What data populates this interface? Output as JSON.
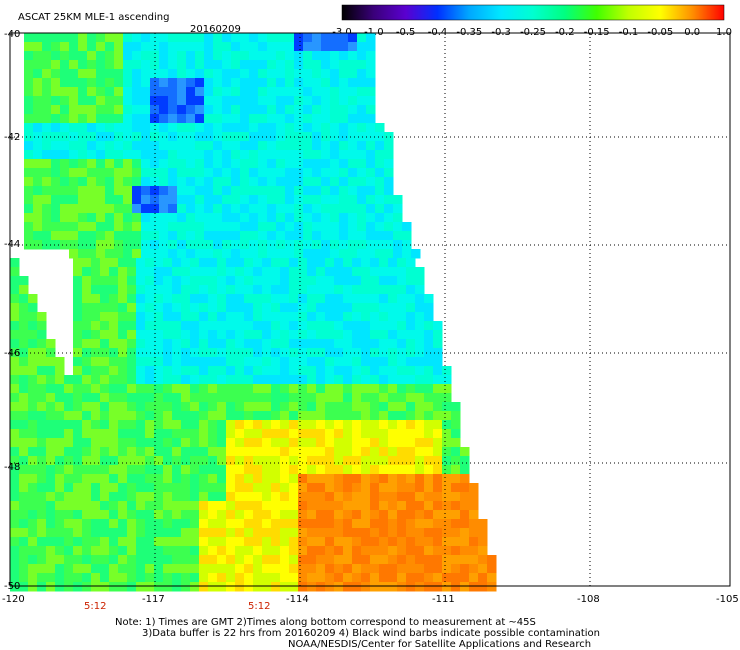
{
  "header": {
    "title": "ASCAT 25KM MLE-1 ascending",
    "date": "20160209"
  },
  "colorbar": {
    "labels": [
      "-3.0",
      "-1.0",
      "-0.5",
      "-0.4",
      "-0.35",
      "-0.3",
      "-0.25",
      "-0.2",
      "-0.15",
      "-0.1",
      "-0.05",
      "0.0",
      "1.0"
    ],
    "colors": [
      "#000000",
      "#3a007a",
      "#5a00d0",
      "#0030ff",
      "#00a8ff",
      "#00e8ff",
      "#00ffd0",
      "#00ff80",
      "#40ff00",
      "#c0ff00",
      "#ffff00",
      "#ff9000",
      "#ff0000"
    ]
  },
  "map": {
    "lat_labels": [
      "-40",
      "-42",
      "-44",
      "-46",
      "-48",
      "-50"
    ],
    "lon_labels": [
      "-120",
      "-117",
      "-114",
      "-111",
      "-108",
      "-105"
    ],
    "time_labels": [
      "5:12",
      "5:12"
    ],
    "grid": true,
    "lat_range": [
      -50,
      -40
    ],
    "lon_range": [
      -120,
      -105
    ]
  },
  "notes": {
    "line1": "Note: 1) Times are GMT 2)Times along bottom correspond to measurement at ~45S",
    "line2": "3)Data buffer is 22 hrs from 20160209 4) Black wind barbs indicate possible contamination",
    "line3": "NOAA/NESDIS/Center for Satellite Applications and Research"
  },
  "colors": {
    "ocean_bg": "#ffffff",
    "grid": "#000000",
    "time_label": "#cc2200"
  }
}
